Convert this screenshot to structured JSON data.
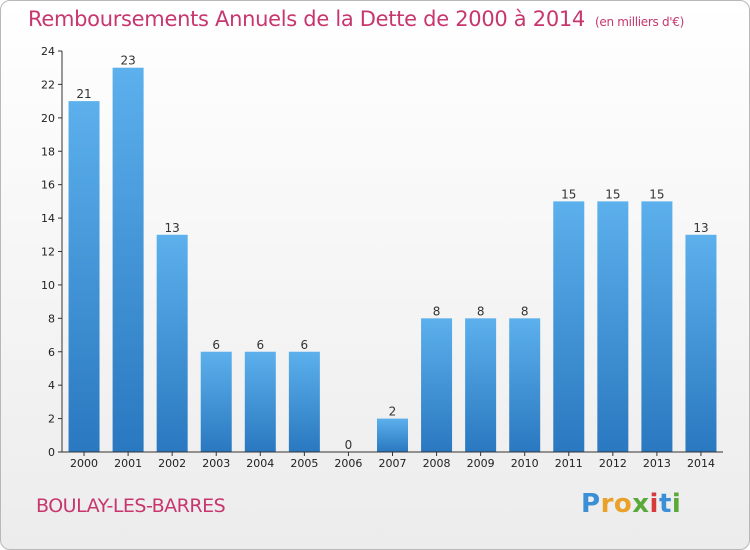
{
  "title": "Remboursements Annuels de la Dette de 2000 à 2014",
  "unit_note": "(en milliers d'€)",
  "city": "BOULAY-LES-BARRES",
  "logo": {
    "letters": [
      "P",
      "r",
      "o",
      "x",
      "i",
      "t",
      "i"
    ],
    "colors": [
      "#3a8fd6",
      "#e9a12a",
      "#e9a12a",
      "#5aaa3a",
      "#d63a3a",
      "#3a8fd6",
      "#5aaa3a"
    ]
  },
  "colors": {
    "title": "#c8366e",
    "bar_light": "#5cb0ec",
    "bar_dark": "#2a78c0"
  },
  "chart_data": {
    "type": "bar",
    "title": "Remboursements Annuels de la Dette de 2000 à 2014",
    "xlabel": "",
    "ylabel": "",
    "categories": [
      "2000",
      "2001",
      "2002",
      "2003",
      "2004",
      "2005",
      "2006",
      "2007",
      "2008",
      "2009",
      "2010",
      "2011",
      "2012",
      "2013",
      "2014"
    ],
    "values": [
      21,
      23,
      13,
      6,
      6,
      6,
      0,
      2,
      8,
      8,
      8,
      15,
      15,
      15,
      13
    ],
    "ylim": [
      0,
      24
    ],
    "yticks": [
      0,
      2,
      4,
      6,
      8,
      10,
      12,
      14,
      16,
      18,
      20,
      22,
      24
    ],
    "grid": false,
    "legend": "none"
  }
}
